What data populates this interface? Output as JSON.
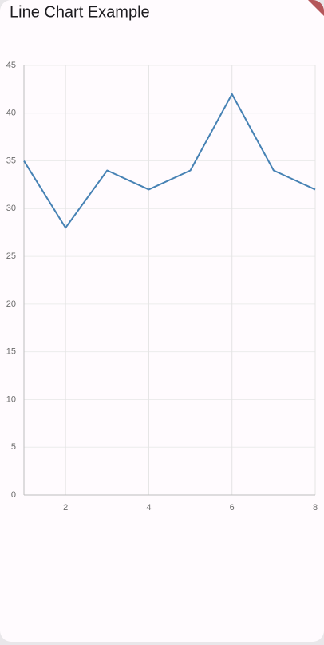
{
  "chart_data": {
    "type": "line",
    "title": "Line Chart Example",
    "x": [
      1,
      2,
      3,
      4,
      5,
      6,
      7,
      8
    ],
    "series": [
      {
        "color": "#4682b4",
        "values": [
          35,
          28,
          34,
          32,
          34,
          42,
          34,
          32
        ]
      }
    ],
    "xlim": [
      1,
      8
    ],
    "xticks": [
      2,
      4,
      6,
      8
    ],
    "ylim": [
      0,
      45
    ],
    "yticks": [
      0,
      5,
      10,
      15,
      20,
      25,
      30,
      35,
      40,
      45
    ],
    "grid": true
  }
}
